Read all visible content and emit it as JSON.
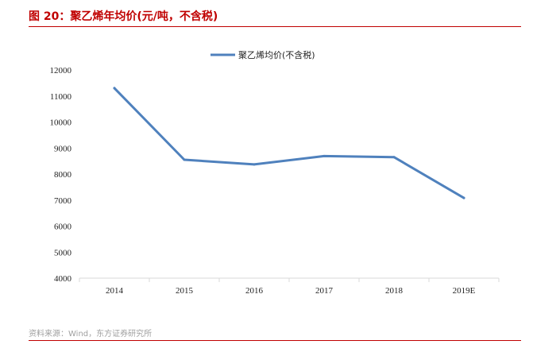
{
  "figure": {
    "title": "图 20：聚乙烯年均价(元/吨，不含税)",
    "source": "资料来源：Wind，东方证券研究所",
    "accent_color": "#c00000"
  },
  "chart_data": {
    "type": "line",
    "title": "",
    "xlabel": "",
    "ylabel": "",
    "categories": [
      "2014",
      "2015",
      "2016",
      "2017",
      "2018",
      "2019E"
    ],
    "series": [
      {
        "name": "聚乙烯均价(不含税)",
        "color": "#4f81bd",
        "values": [
          11300,
          8550,
          8370,
          8690,
          8650,
          7080
        ]
      }
    ],
    "ylim": [
      4000,
      12000
    ],
    "yticks": [
      4000,
      5000,
      6000,
      7000,
      8000,
      9000,
      10000,
      11000,
      12000
    ],
    "grid": false,
    "legend_position": "top-center"
  }
}
